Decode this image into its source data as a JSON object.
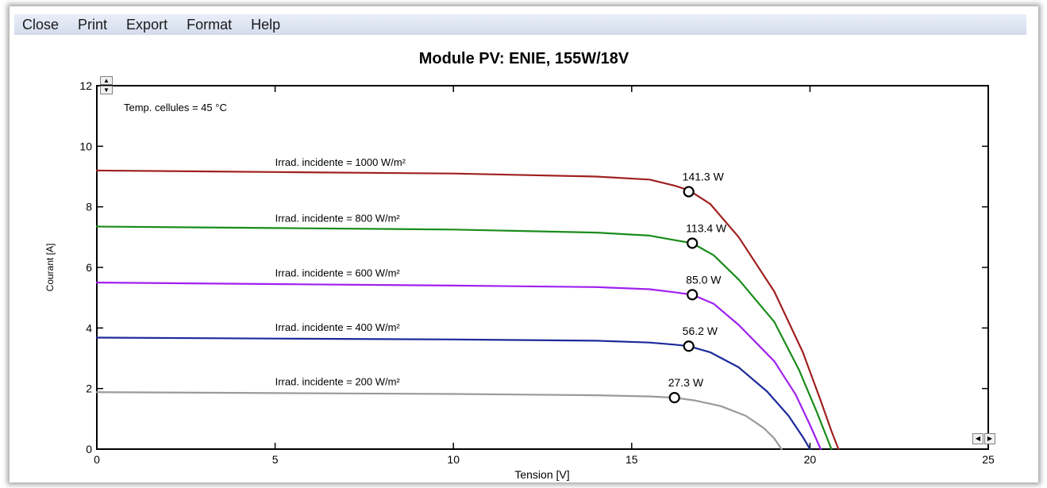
{
  "menu": {
    "items": [
      "Close",
      "Print",
      "Export",
      "Format",
      "Help"
    ]
  },
  "colors": {
    "frame_bg": "#ffffff",
    "menubar_bg": "#d7dfef",
    "axis": "#000000",
    "series": [
      "#a02020",
      "#1a8c1a",
      "#a020f0",
      "#1c2a9c",
      "#9a9a9a"
    ]
  },
  "chart_data": {
    "type": "line",
    "title": "Module PV:  ENIE,  155W/18V",
    "xlabel": "Tension [V]",
    "ylabel": "Courant [A]",
    "xlim": [
      0,
      25
    ],
    "ylim": [
      0,
      12
    ],
    "xticks": [
      0,
      5,
      10,
      15,
      20,
      25
    ],
    "yticks": [
      0,
      2,
      4,
      6,
      8,
      10,
      12
    ],
    "grid": false,
    "annotation": "Temp. cellules = 45 °C",
    "series": [
      {
        "name": "Irrad. incidente = 1000 W/m²",
        "color": "#a02020",
        "label_pos": [
          5.0,
          9.25
        ],
        "points": [
          [
            0,
            9.2
          ],
          [
            5,
            9.15
          ],
          [
            10,
            9.1
          ],
          [
            14,
            9.0
          ],
          [
            15.5,
            8.9
          ],
          [
            16.2,
            8.7
          ],
          [
            16.6,
            8.55
          ],
          [
            17.2,
            8.1
          ],
          [
            18,
            7.0
          ],
          [
            19,
            5.2
          ],
          [
            19.8,
            3.2
          ],
          [
            20.3,
            1.6
          ],
          [
            20.6,
            0.6
          ],
          [
            20.8,
            0
          ]
        ],
        "mpp": {
          "x": 16.6,
          "y": 8.5,
          "label": "141.3 W"
        }
      },
      {
        "name": "Irrad. incidente = 800 W/m²",
        "color": "#1a8c1a",
        "label_pos": [
          5.0,
          7.4
        ],
        "points": [
          [
            0,
            7.35
          ],
          [
            5,
            7.3
          ],
          [
            10,
            7.25
          ],
          [
            14,
            7.15
          ],
          [
            15.5,
            7.05
          ],
          [
            16.2,
            6.9
          ],
          [
            16.7,
            6.8
          ],
          [
            17.3,
            6.4
          ],
          [
            18,
            5.6
          ],
          [
            19,
            4.2
          ],
          [
            19.7,
            2.6
          ],
          [
            20.2,
            1.2
          ],
          [
            20.6,
            0
          ]
        ],
        "mpp": {
          "x": 16.7,
          "y": 6.8,
          "label": "113.4 W"
        }
      },
      {
        "name": "Irrad. incidente = 600 W/m²",
        "color": "#a020f0",
        "label_pos": [
          5.0,
          5.6
        ],
        "points": [
          [
            0,
            5.5
          ],
          [
            5,
            5.45
          ],
          [
            10,
            5.4
          ],
          [
            14,
            5.35
          ],
          [
            15.5,
            5.28
          ],
          [
            16.2,
            5.18
          ],
          [
            16.7,
            5.1
          ],
          [
            17.3,
            4.8
          ],
          [
            18,
            4.1
          ],
          [
            19,
            2.9
          ],
          [
            19.6,
            1.8
          ],
          [
            20.0,
            0.8
          ],
          [
            20.3,
            0
          ]
        ],
        "mpp": {
          "x": 16.7,
          "y": 5.1,
          "label": "85.0 W"
        }
      },
      {
        "name": "Irrad. incidente = 400 W/m²",
        "color": "#1c2a9c",
        "label_pos": [
          5.0,
          3.8
        ],
        "points": [
          [
            0,
            3.68
          ],
          [
            5,
            3.65
          ],
          [
            10,
            3.62
          ],
          [
            14,
            3.58
          ],
          [
            15.5,
            3.52
          ],
          [
            16.2,
            3.45
          ],
          [
            16.6,
            3.4
          ],
          [
            17.2,
            3.2
          ],
          [
            18,
            2.7
          ],
          [
            18.8,
            1.9
          ],
          [
            19.4,
            1.1
          ],
          [
            19.8,
            0.4
          ],
          [
            20.0,
            0
          ]
        ],
        "mpp": {
          "x": 16.6,
          "y": 3.4,
          "label": "56.2 W"
        }
      },
      {
        "name": "Irrad. incidente = 200 W/m²",
        "color": "#9a9a9a",
        "label_pos": [
          5.0,
          2.0
        ],
        "points": [
          [
            0,
            1.88
          ],
          [
            5,
            1.85
          ],
          [
            10,
            1.82
          ],
          [
            14,
            1.78
          ],
          [
            15.5,
            1.74
          ],
          [
            16.2,
            1.7
          ],
          [
            16.8,
            1.6
          ],
          [
            17.5,
            1.42
          ],
          [
            18.2,
            1.1
          ],
          [
            18.7,
            0.7
          ],
          [
            19.0,
            0.35
          ],
          [
            19.2,
            0
          ]
        ],
        "mpp": {
          "x": 16.2,
          "y": 1.7,
          "label": "27.3 W"
        }
      }
    ]
  }
}
